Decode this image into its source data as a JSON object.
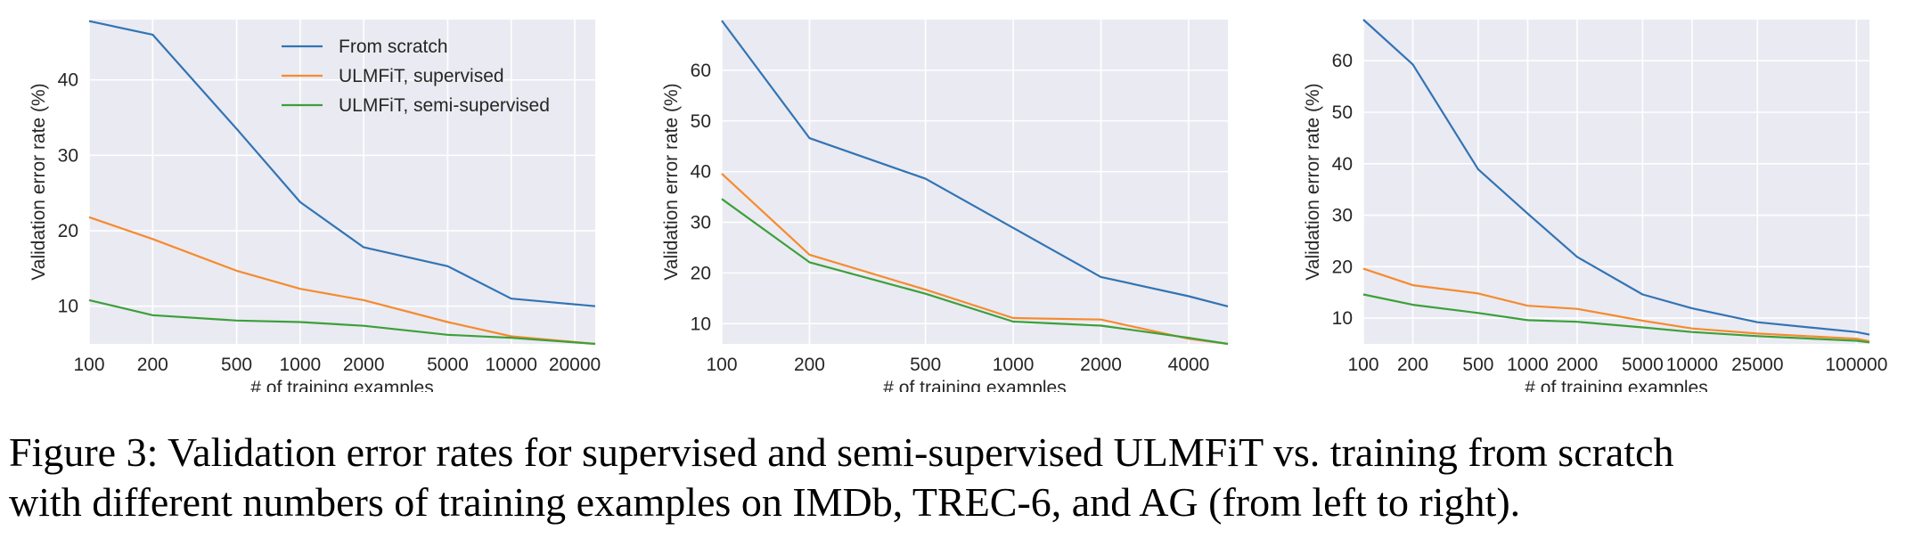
{
  "colors": {
    "from_scratch": "#3274b4",
    "ulmfit_supervised": "#f58b2f",
    "ulmfit_semi_supervised": "#3ba03a",
    "plot_background": "#eaeaf2",
    "grid": "#ffffff"
  },
  "chart_data": [
    {
      "type": "line",
      "x_scale": "log",
      "xlabel": "# of training examples",
      "ylabel": "Validation error rate (%)",
      "xlim": [
        100,
        25000
      ],
      "ylim": [
        5,
        48
      ],
      "xticks": [
        100,
        200,
        500,
        1000,
        2000,
        5000,
        10000,
        20000
      ],
      "xtick_labels": [
        "100",
        "200",
        "500",
        "1000",
        "2000",
        "5000",
        "10000",
        "20000"
      ],
      "yticks": [
        10,
        20,
        30,
        40
      ],
      "grid": true,
      "legend": {
        "placement": "top-center"
      },
      "x": [
        100,
        200,
        500,
        1000,
        2000,
        5000,
        10000,
        25000
      ],
      "series": [
        {
          "name": "From scratch",
          "values": [
            47.8,
            46.0,
            33.5,
            23.8,
            17.8,
            15.3,
            11.0,
            10.0
          ]
        },
        {
          "name": "ULMFiT, supervised",
          "values": [
            21.8,
            18.9,
            14.7,
            12.3,
            10.8,
            7.9,
            6.0,
            5.0
          ]
        },
        {
          "name": "ULMFiT, semi-supervised",
          "values": [
            10.8,
            8.8,
            8.1,
            7.9,
            7.4,
            6.2,
            5.8,
            5.0
          ]
        }
      ]
    },
    {
      "type": "line",
      "x_scale": "log",
      "xlabel": "# of training examples",
      "ylabel": "Validation error rate (%)",
      "xlim": [
        100,
        5452
      ],
      "ylim": [
        6,
        70
      ],
      "xticks": [
        100,
        200,
        500,
        1000,
        2000,
        4000
      ],
      "xtick_labels": [
        "100",
        "200",
        "500",
        "1000",
        "2000",
        "4000"
      ],
      "yticks": [
        10,
        20,
        30,
        40,
        50,
        60
      ],
      "grid": true,
      "x": [
        100,
        200,
        500,
        1000,
        2000,
        4000,
        5452
      ],
      "series": [
        {
          "name": "From scratch",
          "values": [
            69.8,
            46.6,
            38.6,
            28.9,
            19.2,
            15.4,
            13.4
          ]
        },
        {
          "name": "ULMFiT, supervised",
          "values": [
            39.6,
            23.6,
            16.7,
            11.1,
            10.8,
            7.0,
            6.0
          ]
        },
        {
          "name": "ULMFiT, semi-supervised",
          "values": [
            34.6,
            22.1,
            15.9,
            10.4,
            9.6,
            7.2,
            6.0
          ]
        }
      ]
    },
    {
      "type": "line",
      "x_scale": "log",
      "xlabel": "# of training examples",
      "ylabel": "Validation error rate (%)",
      "xlim": [
        100,
        120000
      ],
      "ylim": [
        5,
        68
      ],
      "xticks": [
        100,
        200,
        500,
        1000,
        2000,
        5000,
        10000,
        25000,
        100000
      ],
      "xtick_labels": [
        "100",
        "200",
        "500",
        "1000",
        "2000",
        "5000",
        "10000",
        "25000",
        "100000"
      ],
      "yticks": [
        10,
        20,
        30,
        40,
        50,
        60
      ],
      "grid": true,
      "x": [
        100,
        200,
        500,
        1000,
        2000,
        5000,
        10000,
        25000,
        100000,
        120000
      ],
      "series": [
        {
          "name": "From scratch",
          "values": [
            68.0,
            59.3,
            38.9,
            30.3,
            21.9,
            14.6,
            11.9,
            9.2,
            7.3,
            6.8
          ]
        },
        {
          "name": "ULMFiT, supervised",
          "values": [
            19.6,
            16.4,
            14.8,
            12.4,
            11.8,
            9.5,
            8.0,
            7.0,
            6.0,
            5.5
          ]
        },
        {
          "name": "ULMFiT, semi-supervised",
          "values": [
            14.6,
            12.6,
            11.0,
            9.6,
            9.3,
            8.2,
            7.3,
            6.5,
            5.6,
            5.3
          ]
        }
      ]
    }
  ],
  "caption": {
    "line1": "Figure 3:  Validation error rates for supervised and semi-supervised ULMFiT vs.  training from scratch",
    "line2": "with different numbers of training examples on IMDb, TREC-6, and AG (from left to right)."
  }
}
